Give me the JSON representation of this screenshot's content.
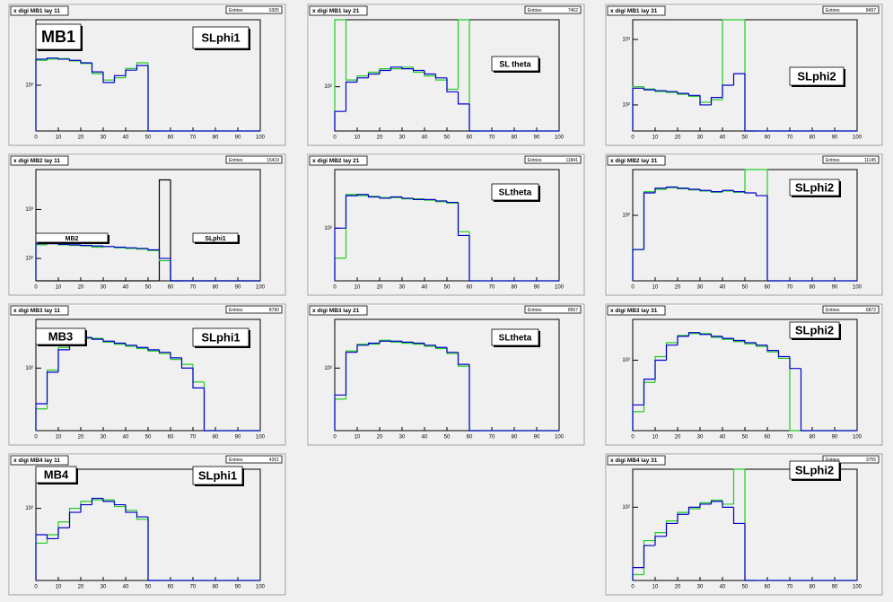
{
  "chart_data": [
    {
      "type": "histogram",
      "title": "x digi MB1 lay 11",
      "stats": {
        "label": "Entries",
        "value": 6305
      },
      "annotations": [
        "MB1",
        "SLphi1"
      ],
      "bins": [
        0,
        5,
        10,
        15,
        20,
        25,
        30,
        35,
        40,
        45,
        50,
        55,
        60,
        65,
        70,
        75,
        80,
        85,
        90,
        95,
        100
      ],
      "series": [
        {
          "color": "#22cc22",
          "values": [
            240,
            250,
            255,
            235,
            215,
            150,
            120,
            130,
            180,
            220,
            0,
            0,
            0,
            0,
            0,
            0,
            0,
            0,
            0,
            0
          ]
        },
        {
          "color": "#0000cc",
          "values": [
            250,
            260,
            250,
            240,
            220,
            160,
            110,
            140,
            170,
            200,
            0,
            0,
            0,
            0,
            0,
            0,
            0,
            0,
            0,
            0
          ]
        }
      ],
      "xlim": [
        0,
        100
      ],
      "xticks": [
        0,
        10,
        20,
        30,
        40,
        50,
        60,
        70,
        80,
        90,
        100
      ],
      "ylim": [
        20,
        1000
      ],
      "yticks": [
        {
          "value": 100,
          "label": "10²"
        }
      ],
      "log_y": true
    },
    {
      "type": "histogram",
      "title": "x digi MB1 lay 21",
      "stats": {
        "label": "Entries",
        "value": 7462
      },
      "annotations": [
        "SL theta"
      ],
      "bins": [
        0,
        5,
        10,
        15,
        20,
        25,
        30,
        35,
        40,
        45,
        50,
        55,
        60,
        65,
        70,
        75,
        80,
        85,
        90,
        95,
        100
      ],
      "series": [
        {
          "color": "#22cc22",
          "values": [
            400,
            115,
            125,
            135,
            145,
            145,
            150,
            135,
            125,
            115,
            95,
            400,
            0,
            0,
            0,
            0,
            0,
            0,
            0,
            0
          ]
        },
        {
          "color": "#0000cc",
          "values": [
            60,
            110,
            120,
            130,
            140,
            150,
            145,
            140,
            130,
            120,
            90,
            70,
            0,
            0,
            0,
            0,
            0,
            0,
            0,
            0
          ]
        }
      ],
      "xlim": [
        0,
        100
      ],
      "xticks": [
        0,
        10,
        20,
        30,
        40,
        50,
        60,
        70,
        80,
        90,
        100
      ],
      "ylim": [
        40,
        400
      ],
      "yticks": [
        {
          "value": 100,
          "label": "10²"
        }
      ],
      "log_y": true
    },
    {
      "type": "histogram",
      "title": "x digi MB1 lay 31",
      "stats": {
        "label": "Entries",
        "value": 8497
      },
      "annotations": [
        "SLphi2"
      ],
      "bins": [
        0,
        5,
        10,
        15,
        20,
        25,
        30,
        35,
        40,
        45,
        50,
        55,
        60,
        65,
        70,
        75,
        80,
        85,
        90,
        95,
        100
      ],
      "series": [
        {
          "color": "#22cc22",
          "values": [
            190,
            175,
            160,
            155,
            145,
            135,
            110,
            120,
            2000,
            2000,
            0,
            0,
            0,
            0,
            0,
            0,
            0,
            0,
            0,
            0
          ]
        },
        {
          "color": "#0000cc",
          "values": [
            180,
            170,
            165,
            160,
            150,
            140,
            100,
            130,
            200,
            300,
            0,
            0,
            0,
            0,
            0,
            0,
            0,
            0,
            0,
            0
          ]
        }
      ],
      "xlim": [
        0,
        100
      ],
      "xticks": [
        0,
        10,
        20,
        30,
        40,
        50,
        60,
        70,
        80,
        90,
        100
      ],
      "ylim": [
        40,
        2000
      ],
      "yticks": [
        {
          "value": 100,
          "label": "10²"
        },
        {
          "value": 1000,
          "label": "10³"
        }
      ],
      "log_y": true
    },
    {
      "type": "histogram",
      "title": "x digi MB2 lay 11",
      "stats": {
        "label": "Entries",
        "value": 15419
      },
      "annotations": [
        "MB2",
        "SLphi1"
      ],
      "bins": [
        0,
        5,
        10,
        15,
        20,
        25,
        30,
        35,
        40,
        45,
        50,
        55,
        60,
        65,
        70,
        75,
        80,
        85,
        90,
        95,
        100
      ],
      "series": [
        {
          "color": "#000000",
          "values": [
            0,
            0,
            0,
            0,
            0,
            0,
            0,
            0,
            0,
            0,
            0,
            4000,
            0,
            0,
            0,
            0,
            0,
            0,
            0,
            0
          ]
        },
        {
          "color": "#22cc22",
          "values": [
            190,
            205,
            190,
            185,
            180,
            170,
            175,
            165,
            160,
            155,
            145,
            90,
            0,
            0,
            0,
            0,
            0,
            0,
            0,
            0
          ]
        },
        {
          "color": "#0000cc",
          "values": [
            200,
            200,
            195,
            190,
            185,
            180,
            175,
            170,
            165,
            160,
            150,
            100,
            0,
            0,
            0,
            0,
            0,
            0,
            0,
            0
          ]
        }
      ],
      "xlim": [
        0,
        100
      ],
      "xticks": [
        0,
        10,
        20,
        30,
        40,
        50,
        60,
        70,
        80,
        90,
        100
      ],
      "ylim": [
        35,
        6500
      ],
      "yticks": [
        {
          "value": 100,
          "label": "10²"
        },
        {
          "value": 1000,
          "label": "10³"
        }
      ],
      "log_y": true
    },
    {
      "type": "histogram",
      "title": "x digi MB2 lay 21",
      "stats": {
        "label": "Entries",
        "value": 11841
      },
      "annotations": [
        "SLtheta"
      ],
      "bins": [
        0,
        5,
        10,
        15,
        20,
        25,
        30,
        35,
        40,
        45,
        50,
        55,
        60,
        65,
        70,
        75,
        80,
        85,
        90,
        95,
        100
      ],
      "series": [
        {
          "color": "#22cc22",
          "values": [
            40,
            280,
            270,
            265,
            255,
            255,
            245,
            245,
            235,
            225,
            215,
            90,
            0,
            0,
            0,
            0,
            0,
            0,
            0,
            0
          ]
        },
        {
          "color": "#0000cc",
          "values": [
            100,
            270,
            280,
            260,
            250,
            260,
            250,
            240,
            240,
            230,
            220,
            80,
            0,
            0,
            0,
            0,
            0,
            0,
            0,
            0
          ]
        }
      ],
      "xlim": [
        0,
        100
      ],
      "xticks": [
        0,
        10,
        20,
        30,
        40,
        50,
        60,
        70,
        80,
        90,
        100
      ],
      "ylim": [
        20,
        600
      ],
      "yticks": [
        {
          "value": 100,
          "label": "10²"
        }
      ],
      "log_y": true
    },
    {
      "type": "histogram",
      "title": "x digi MB2 lay 31",
      "stats": {
        "label": "Entries",
        "value": 11145
      },
      "annotations": [
        "SLphi2"
      ],
      "bins": [
        0,
        5,
        10,
        15,
        20,
        25,
        30,
        35,
        40,
        45,
        50,
        55,
        60,
        65,
        70,
        75,
        80,
        85,
        90,
        95,
        100
      ],
      "series": [
        {
          "color": "#22cc22",
          "values": [
            30,
            230,
            250,
            265,
            255,
            245,
            235,
            225,
            235,
            225,
            500,
            500,
            0,
            0,
            0,
            0,
            0,
            0,
            0,
            0
          ]
        },
        {
          "color": "#0000cc",
          "values": [
            30,
            220,
            260,
            270,
            260,
            250,
            240,
            230,
            240,
            230,
            220,
            200,
            0,
            0,
            0,
            0,
            0,
            0,
            0,
            0
          ]
        }
      ],
      "xlim": [
        0,
        100
      ],
      "xticks": [
        0,
        10,
        20,
        30,
        40,
        50,
        60,
        70,
        80,
        90,
        100
      ],
      "ylim": [
        10,
        500
      ],
      "yticks": [
        {
          "value": 100,
          "label": "10²"
        }
      ],
      "log_y": true
    },
    {
      "type": "histogram",
      "title": "x digi MB3 lay 11",
      "stats": {
        "label": "Entries",
        "value": 8790
      },
      "annotations": [
        "MB3",
        "SLphi1"
      ],
      "bins": [
        0,
        5,
        10,
        15,
        20,
        25,
        30,
        35,
        40,
        45,
        50,
        55,
        60,
        65,
        70,
        75,
        80,
        85,
        90,
        95,
        100
      ],
      "series": [
        {
          "color": "#22cc22",
          "values": [
            35,
            95,
            170,
            205,
            215,
            215,
            195,
            185,
            175,
            165,
            155,
            145,
            125,
            110,
            70,
            0,
            0,
            0,
            0,
            0
          ]
        },
        {
          "color": "#0000cc",
          "values": [
            40,
            90,
            160,
            200,
            220,
            210,
            200,
            190,
            180,
            170,
            160,
            150,
            130,
            100,
            60,
            0,
            0,
            0,
            0,
            0
          ]
        }
      ],
      "xlim": [
        0,
        100
      ],
      "xticks": [
        0,
        10,
        20,
        30,
        40,
        50,
        60,
        70,
        80,
        90,
        100
      ],
      "ylim": [
        20,
        350
      ],
      "yticks": [
        {
          "value": 100,
          "label": "10²"
        }
      ],
      "log_y": true
    },
    {
      "type": "histogram",
      "title": "x digi MB3 lay 21",
      "stats": {
        "label": "Entries",
        "value": 8557
      },
      "annotations": [
        "SLtheta"
      ],
      "bins": [
        0,
        5,
        10,
        15,
        20,
        25,
        30,
        35,
        40,
        45,
        50,
        55,
        60,
        65,
        70,
        75,
        80,
        85,
        90,
        95,
        100
      ],
      "series": [
        {
          "color": "#22cc22",
          "values": [
            45,
            155,
            185,
            185,
            205,
            195,
            190,
            185,
            175,
            165,
            145,
            105,
            0,
            0,
            0,
            0,
            0,
            0,
            0,
            0
          ]
        },
        {
          "color": "#0000cc",
          "values": [
            50,
            150,
            180,
            190,
            200,
            200,
            195,
            190,
            180,
            170,
            150,
            110,
            0,
            0,
            0,
            0,
            0,
            0,
            0,
            0
          ]
        }
      ],
      "xlim": [
        0,
        100
      ],
      "xticks": [
        0,
        10,
        20,
        30,
        40,
        50,
        60,
        70,
        80,
        90,
        100
      ],
      "ylim": [
        20,
        350
      ],
      "yticks": [
        {
          "value": 100,
          "label": "10²"
        }
      ],
      "log_y": true
    },
    {
      "type": "histogram",
      "title": "x digi MB3 lay 31",
      "stats": {
        "label": "Entries",
        "value": 6872
      },
      "annotations": [
        "SLphi2"
      ],
      "bins": [
        0,
        5,
        10,
        15,
        20,
        25,
        30,
        35,
        40,
        45,
        50,
        55,
        60,
        65,
        70,
        75,
        80,
        85,
        90,
        95,
        100
      ],
      "series": [
        {
          "color": "#22cc22",
          "values": [
            25,
            55,
            110,
            160,
            195,
            205,
            205,
            185,
            175,
            165,
            155,
            145,
            125,
            105,
            0,
            0,
            0,
            0,
            0,
            0
          ]
        },
        {
          "color": "#0000cc",
          "values": [
            30,
            60,
            100,
            150,
            190,
            210,
            200,
            190,
            180,
            170,
            160,
            150,
            130,
            110,
            80,
            0,
            0,
            0,
            0,
            0
          ]
        }
      ],
      "xlim": [
        0,
        100
      ],
      "xticks": [
        0,
        10,
        20,
        30,
        40,
        50,
        60,
        70,
        80,
        90,
        100
      ],
      "ylim": [
        15,
        300
      ],
      "yticks": [
        {
          "value": 100,
          "label": "10²"
        }
      ],
      "log_y": true
    },
    {
      "type": "histogram",
      "title": "x digi MB4 lay 11",
      "stats": {
        "label": "Entries",
        "value": 4261
      },
      "annotations": [
        "MB4",
        "SLphi1"
      ],
      "bins": [
        0,
        5,
        10,
        15,
        20,
        25,
        30,
        35,
        40,
        45,
        50,
        55,
        60,
        65,
        70,
        75,
        80,
        85,
        90,
        95,
        100
      ],
      "series": [
        {
          "color": "#22cc22",
          "values": [
            40,
            50,
            70,
            100,
            120,
            125,
            125,
            105,
            95,
            75,
            0,
            0,
            0,
            0,
            0,
            0,
            0,
            0,
            0,
            0
          ]
        },
        {
          "color": "#0000cc",
          "values": [
            50,
            45,
            60,
            90,
            110,
            130,
            120,
            110,
            90,
            80,
            0,
            0,
            0,
            0,
            0,
            0,
            0,
            0,
            0,
            0
          ]
        }
      ],
      "xlim": [
        0,
        100
      ],
      "xticks": [
        0,
        10,
        20,
        30,
        40,
        50,
        60,
        70,
        80,
        90,
        100
      ],
      "ylim": [
        15,
        280
      ],
      "yticks": [
        {
          "value": 100,
          "label": "10²"
        }
      ],
      "log_y": true
    },
    {
      "type": "histogram",
      "title": "x digi MB4 lay 31",
      "stats": {
        "label": "Entries",
        "value": 3755
      },
      "annotations": [
        "SLphi2"
      ],
      "bins": [
        0,
        5,
        10,
        15,
        20,
        25,
        30,
        35,
        40,
        45,
        50,
        55,
        60,
        65,
        70,
        75,
        80,
        85,
        90,
        95,
        100
      ],
      "series": [
        {
          "color": "#22cc22",
          "values": [
            12,
            35,
            45,
            65,
            85,
            95,
            115,
            125,
            110,
            330,
            0,
            0,
            0,
            0,
            0,
            0,
            0,
            0,
            0,
            0
          ]
        },
        {
          "color": "#0000cc",
          "values": [
            15,
            30,
            40,
            60,
            80,
            100,
            110,
            120,
            100,
            60,
            0,
            0,
            0,
            0,
            0,
            0,
            0,
            0,
            0,
            0
          ]
        }
      ],
      "xlim": [
        0,
        100
      ],
      "xticks": [
        0,
        10,
        20,
        30,
        40,
        50,
        60,
        70,
        80,
        90,
        100
      ],
      "ylim": [
        10,
        330
      ],
      "yticks": [
        {
          "value": 100,
          "label": "10²"
        }
      ],
      "log_y": true
    }
  ]
}
